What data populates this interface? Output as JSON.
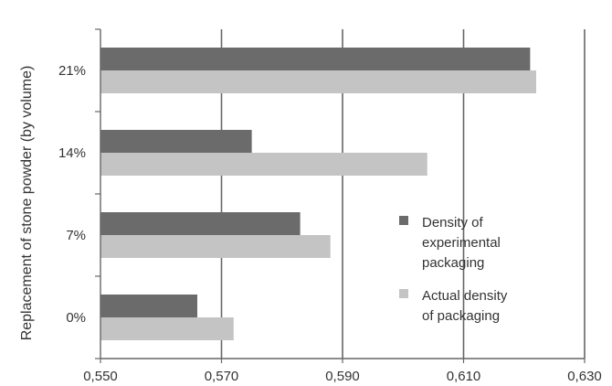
{
  "chart_data": {
    "type": "bar",
    "orientation": "horizontal",
    "title": "",
    "xlabel": "",
    "ylabel": "Replacement of stone powder (by volume)",
    "categories": [
      "21%",
      "14%",
      "7%",
      "0%"
    ],
    "series": [
      {
        "name": "Density of experimental packaging",
        "color": "#6b6b6b",
        "values": [
          0.621,
          0.575,
          0.583,
          0.566
        ]
      },
      {
        "name": "Actual density of packaging",
        "color": "#c4c4c4",
        "values": [
          0.622,
          0.604,
          0.588,
          0.572
        ]
      }
    ],
    "xlim": [
      0.55,
      0.63
    ],
    "xticks": [
      "0,550",
      "0,570",
      "0,590",
      "0,610",
      "0,630"
    ],
    "xtick_values": [
      0.55,
      0.57,
      0.59,
      0.61,
      0.63
    ],
    "grid": "vertical",
    "legend_position": "right-middle",
    "legend": [
      {
        "lines": [
          "Density of",
          "experimental",
          "packaging"
        ]
      },
      {
        "lines": [
          "Actual density",
          "of packaging"
        ]
      }
    ]
  }
}
